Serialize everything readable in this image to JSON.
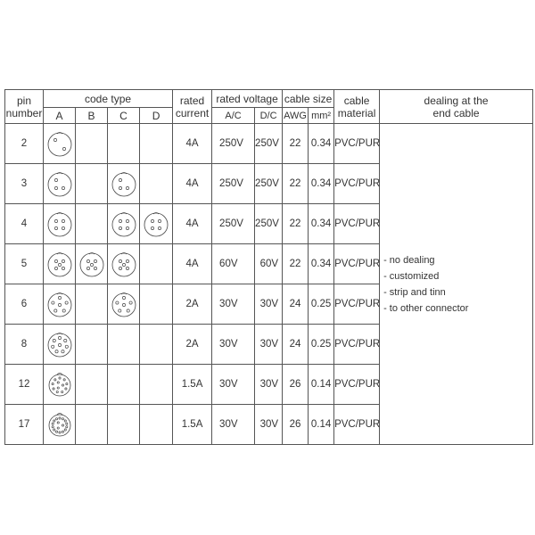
{
  "header": {
    "pin_number": [
      "pin",
      "number"
    ],
    "code_type": "code type",
    "codes": [
      "A",
      "B",
      "C",
      "D"
    ],
    "rated_current": [
      "rated",
      "current"
    ],
    "rated_voltage": "rated voltage",
    "voltage_sub": [
      "A/C",
      "D/C"
    ],
    "cable_size": "cable size",
    "size_sub": [
      "AWG",
      "mm²"
    ],
    "cable_material": [
      "cable",
      "material"
    ],
    "dealing": [
      "dealing at the",
      "end cable"
    ]
  },
  "rows": [
    {
      "pin": "2",
      "icons": {
        "A": 2
      },
      "current": "4A",
      "ac": "250V",
      "dc": "250V",
      "awg": "22",
      "mm2": "0.34",
      "material": "PVC/PUR"
    },
    {
      "pin": "3",
      "icons": {
        "A": 3,
        "C": 3
      },
      "current": "4A",
      "ac": "250V",
      "dc": "250V",
      "awg": "22",
      "mm2": "0.34",
      "material": "PVC/PUR"
    },
    {
      "pin": "4",
      "icons": {
        "A": 4,
        "C": 4,
        "D": 4
      },
      "current": "4A",
      "ac": "250V",
      "dc": "250V",
      "awg": "22",
      "mm2": "0.34",
      "material": "PVC/PUR"
    },
    {
      "pin": "5",
      "icons": {
        "A": 5,
        "B": 5,
        "C": 5
      },
      "current": "4A",
      "ac": "60V",
      "dc": "60V",
      "awg": "22",
      "mm2": "0.34",
      "material": "PVC/PUR"
    },
    {
      "pin": "6",
      "icons": {
        "A": 6,
        "C": 6
      },
      "current": "2A",
      "ac": "30V",
      "dc": "30V",
      "awg": "24",
      "mm2": "0.25",
      "material": "PVC/PUR"
    },
    {
      "pin": "8",
      "icons": {
        "A": 8
      },
      "current": "2A",
      "ac": "30V",
      "dc": "30V",
      "awg": "24",
      "mm2": "0.25",
      "material": "PVC/PUR"
    },
    {
      "pin": "12",
      "icons": {
        "A": 12
      },
      "current": "1.5A",
      "ac": "30V",
      "dc": "30V",
      "awg": "26",
      "mm2": "0.14",
      "material": "PVC/PUR"
    },
    {
      "pin": "17",
      "icons": {
        "A": 17
      },
      "current": "1.5A",
      "ac": "30V",
      "dc": "30V",
      "awg": "26",
      "mm2": "0.14",
      "material": "PVC/PUR"
    }
  ],
  "dealing_options": [
    "- no dealing",
    "- customized",
    "- strip and tinn",
    "- to other  connector"
  ],
  "icon_semantics": "connector-pin-layout-icon"
}
